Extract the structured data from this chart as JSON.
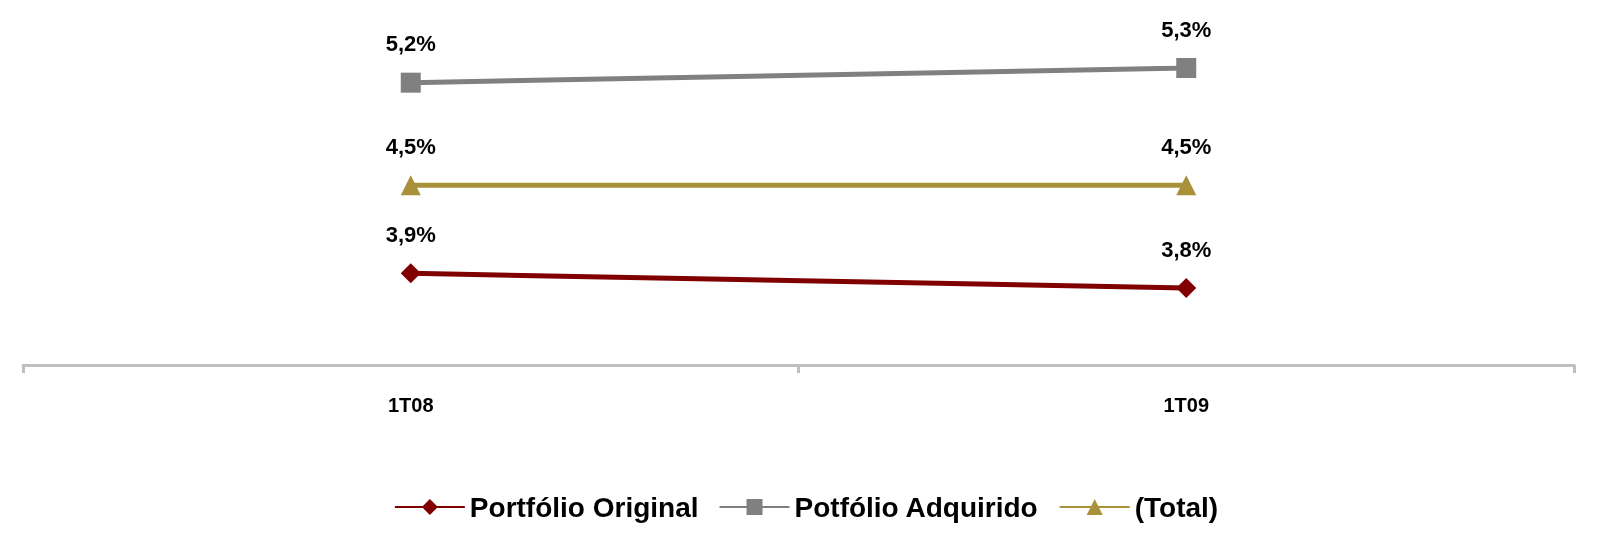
{
  "chart_data": {
    "type": "line",
    "categories": [
      "1T08",
      "1T09"
    ],
    "series": [
      {
        "name": "Portfólio Original",
        "color": "#800000",
        "marker": "diamond",
        "values": [
          3.9,
          3.8
        ],
        "value_labels": [
          "3,9%",
          "3,8%"
        ]
      },
      {
        "name": "Potfólio Adquirido",
        "color": "#808080",
        "marker": "square",
        "values": [
          5.2,
          5.3
        ],
        "value_labels": [
          "5,2%",
          "5,3%"
        ]
      },
      {
        "name": "(Total)",
        "color": "#a8913a",
        "marker": "triangle",
        "values": [
          4.5,
          4.5
        ],
        "value_labels": [
          "4,5%",
          "4,5%"
        ]
      }
    ],
    "grid": false,
    "legend": "bottom",
    "line_style": "solid"
  }
}
